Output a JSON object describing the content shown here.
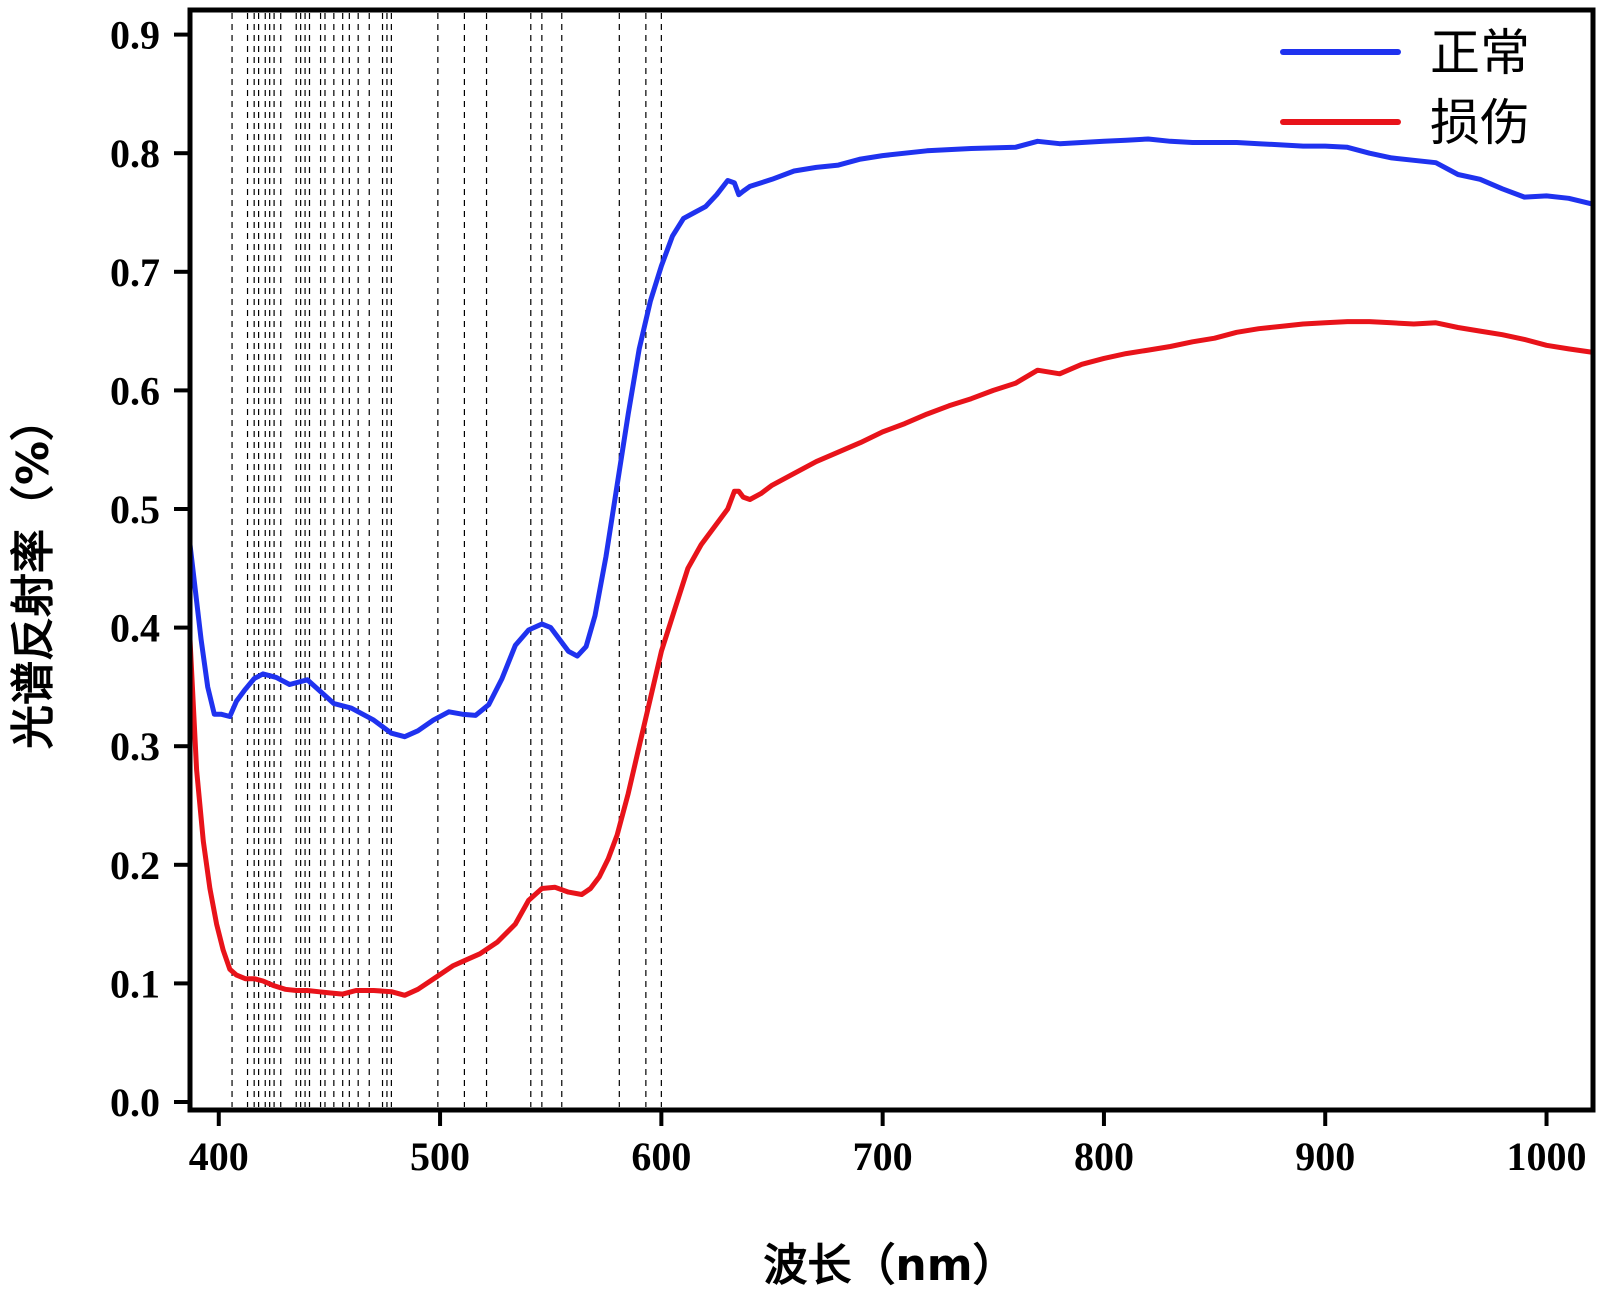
{
  "chart_data": {
    "type": "line",
    "xlabel": "波长（nm）",
    "ylabel": "光谱反射率（%）",
    "xlim": [
      387,
      1021
    ],
    "ylim": [
      0,
      0.92
    ],
    "x_ticks": [
      400,
      500,
      600,
      700,
      800,
      900,
      1000
    ],
    "y_ticks": [
      "0.0",
      "0.1",
      "0.2",
      "0.3",
      "0.4",
      "0.5",
      "0.6",
      "0.7",
      "0.8",
      "0.9"
    ],
    "grid": false,
    "legend_position": "top-right",
    "vertical_reference_lines": [
      406,
      413,
      416,
      418,
      421,
      423,
      425,
      428,
      435,
      437,
      439,
      441,
      446,
      448,
      452,
      456,
      459,
      463,
      468,
      474,
      476,
      478,
      499,
      511,
      521,
      541,
      546,
      555,
      581,
      593,
      600
    ],
    "series": [
      {
        "name": "正常",
        "color": "#1f32ef",
        "x": [
          387,
          392,
          395,
          398,
          401,
          405,
          408,
          412,
          416,
          420,
          426,
          432,
          440,
          446,
          452,
          460,
          470,
          478,
          484,
          490,
          497,
          504,
          510,
          516,
          522,
          528,
          534,
          540,
          546,
          550,
          554,
          558,
          562,
          566,
          570,
          575,
          580,
          585,
          590,
          595,
          600,
          605,
          610,
          615,
          620,
          625,
          630,
          633,
          635,
          637,
          640,
          645,
          650,
          660,
          670,
          680,
          690,
          700,
          720,
          740,
          760,
          770,
          780,
          790,
          800,
          810,
          820,
          830,
          840,
          850,
          860,
          870,
          880,
          890,
          900,
          910,
          920,
          930,
          940,
          950,
          960,
          970,
          980,
          990,
          1000,
          1010,
          1021
        ],
        "values": [
          0.47,
          0.39,
          0.35,
          0.327,
          0.327,
          0.325,
          0.338,
          0.348,
          0.357,
          0.361,
          0.358,
          0.352,
          0.356,
          0.346,
          0.336,
          0.332,
          0.322,
          0.311,
          0.308,
          0.313,
          0.322,
          0.329,
          0.327,
          0.326,
          0.335,
          0.357,
          0.385,
          0.398,
          0.403,
          0.4,
          0.39,
          0.38,
          0.376,
          0.384,
          0.41,
          0.46,
          0.52,
          0.58,
          0.635,
          0.675,
          0.705,
          0.73,
          0.745,
          0.75,
          0.755,
          0.765,
          0.777,
          0.775,
          0.765,
          0.768,
          0.772,
          0.775,
          0.778,
          0.785,
          0.788,
          0.79,
          0.795,
          0.798,
          0.802,
          0.804,
          0.805,
          0.81,
          0.808,
          0.809,
          0.81,
          0.811,
          0.812,
          0.81,
          0.809,
          0.809,
          0.809,
          0.808,
          0.807,
          0.806,
          0.806,
          0.805,
          0.8,
          0.796,
          0.794,
          0.792,
          0.782,
          0.778,
          0.77,
          0.763,
          0.764,
          0.762,
          0.757
        ]
      },
      {
        "name": "损伤",
        "color": "#e8131a",
        "x": [
          387,
          390,
          393,
          396,
          399,
          402,
          405,
          408,
          412,
          416,
          420,
          425,
          430,
          435,
          440,
          445,
          450,
          456,
          462,
          470,
          478,
          484,
          490,
          498,
          506,
          512,
          518,
          526,
          534,
          540,
          546,
          552,
          558,
          564,
          568,
          572,
          576,
          580,
          585,
          590,
          595,
          600,
          606,
          612,
          618,
          624,
          630,
          633,
          635,
          637,
          640,
          645,
          650,
          660,
          670,
          680,
          690,
          700,
          710,
          720,
          730,
          740,
          750,
          760,
          770,
          780,
          790,
          800,
          810,
          820,
          830,
          840,
          850,
          860,
          870,
          880,
          890,
          900,
          910,
          920,
          930,
          940,
          950,
          960,
          970,
          980,
          990,
          1000,
          1010,
          1021
        ],
        "values": [
          0.39,
          0.28,
          0.22,
          0.18,
          0.15,
          0.128,
          0.112,
          0.107,
          0.104,
          0.104,
          0.102,
          0.098,
          0.095,
          0.094,
          0.094,
          0.093,
          0.092,
          0.091,
          0.094,
          0.094,
          0.093,
          0.09,
          0.095,
          0.105,
          0.115,
          0.12,
          0.125,
          0.135,
          0.15,
          0.17,
          0.18,
          0.181,
          0.177,
          0.175,
          0.18,
          0.19,
          0.205,
          0.225,
          0.26,
          0.3,
          0.34,
          0.38,
          0.415,
          0.45,
          0.47,
          0.485,
          0.5,
          0.515,
          0.515,
          0.51,
          0.508,
          0.513,
          0.52,
          0.53,
          0.54,
          0.548,
          0.556,
          0.565,
          0.572,
          0.58,
          0.587,
          0.593,
          0.6,
          0.606,
          0.617,
          0.614,
          0.622,
          0.627,
          0.631,
          0.634,
          0.637,
          0.641,
          0.644,
          0.649,
          0.652,
          0.654,
          0.656,
          0.657,
          0.658,
          0.658,
          0.657,
          0.656,
          0.657,
          0.653,
          0.65,
          0.647,
          0.643,
          0.638,
          0.635,
          0.632
        ]
      }
    ]
  }
}
